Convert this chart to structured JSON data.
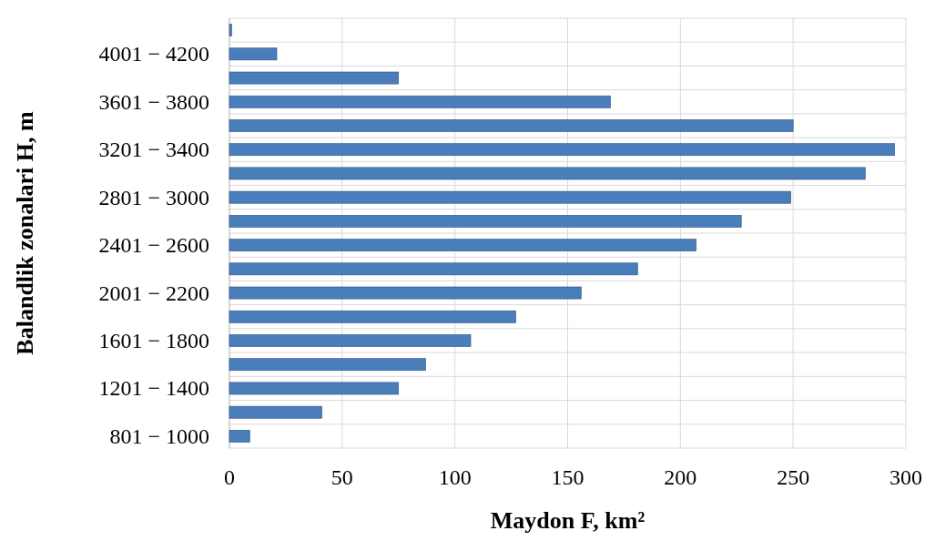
{
  "chart_data": {
    "type": "bar",
    "orientation": "horizontal",
    "xlabel": "Maydon F, km²",
    "ylabel": "Balandlik zonalari H, m",
    "categories": [
      null,
      "4001 − 4200",
      null,
      "3601 − 3800",
      null,
      "3201 − 3400",
      null,
      "2801 − 3000",
      null,
      "2401 − 2600",
      null,
      "2001 − 2200",
      null,
      "1601 − 1800",
      null,
      "1201 − 1400",
      null,
      "801 − 1000"
    ],
    "values": [
      1,
      21,
      75,
      169,
      250,
      295,
      282,
      249,
      227,
      207,
      181,
      156,
      127,
      107,
      87,
      75,
      41,
      9
    ],
    "color": "#4a7ebb",
    "xlim": [
      0,
      300
    ],
    "xticks": [
      0,
      50,
      100,
      150,
      200,
      250,
      300
    ],
    "grid": true
  }
}
